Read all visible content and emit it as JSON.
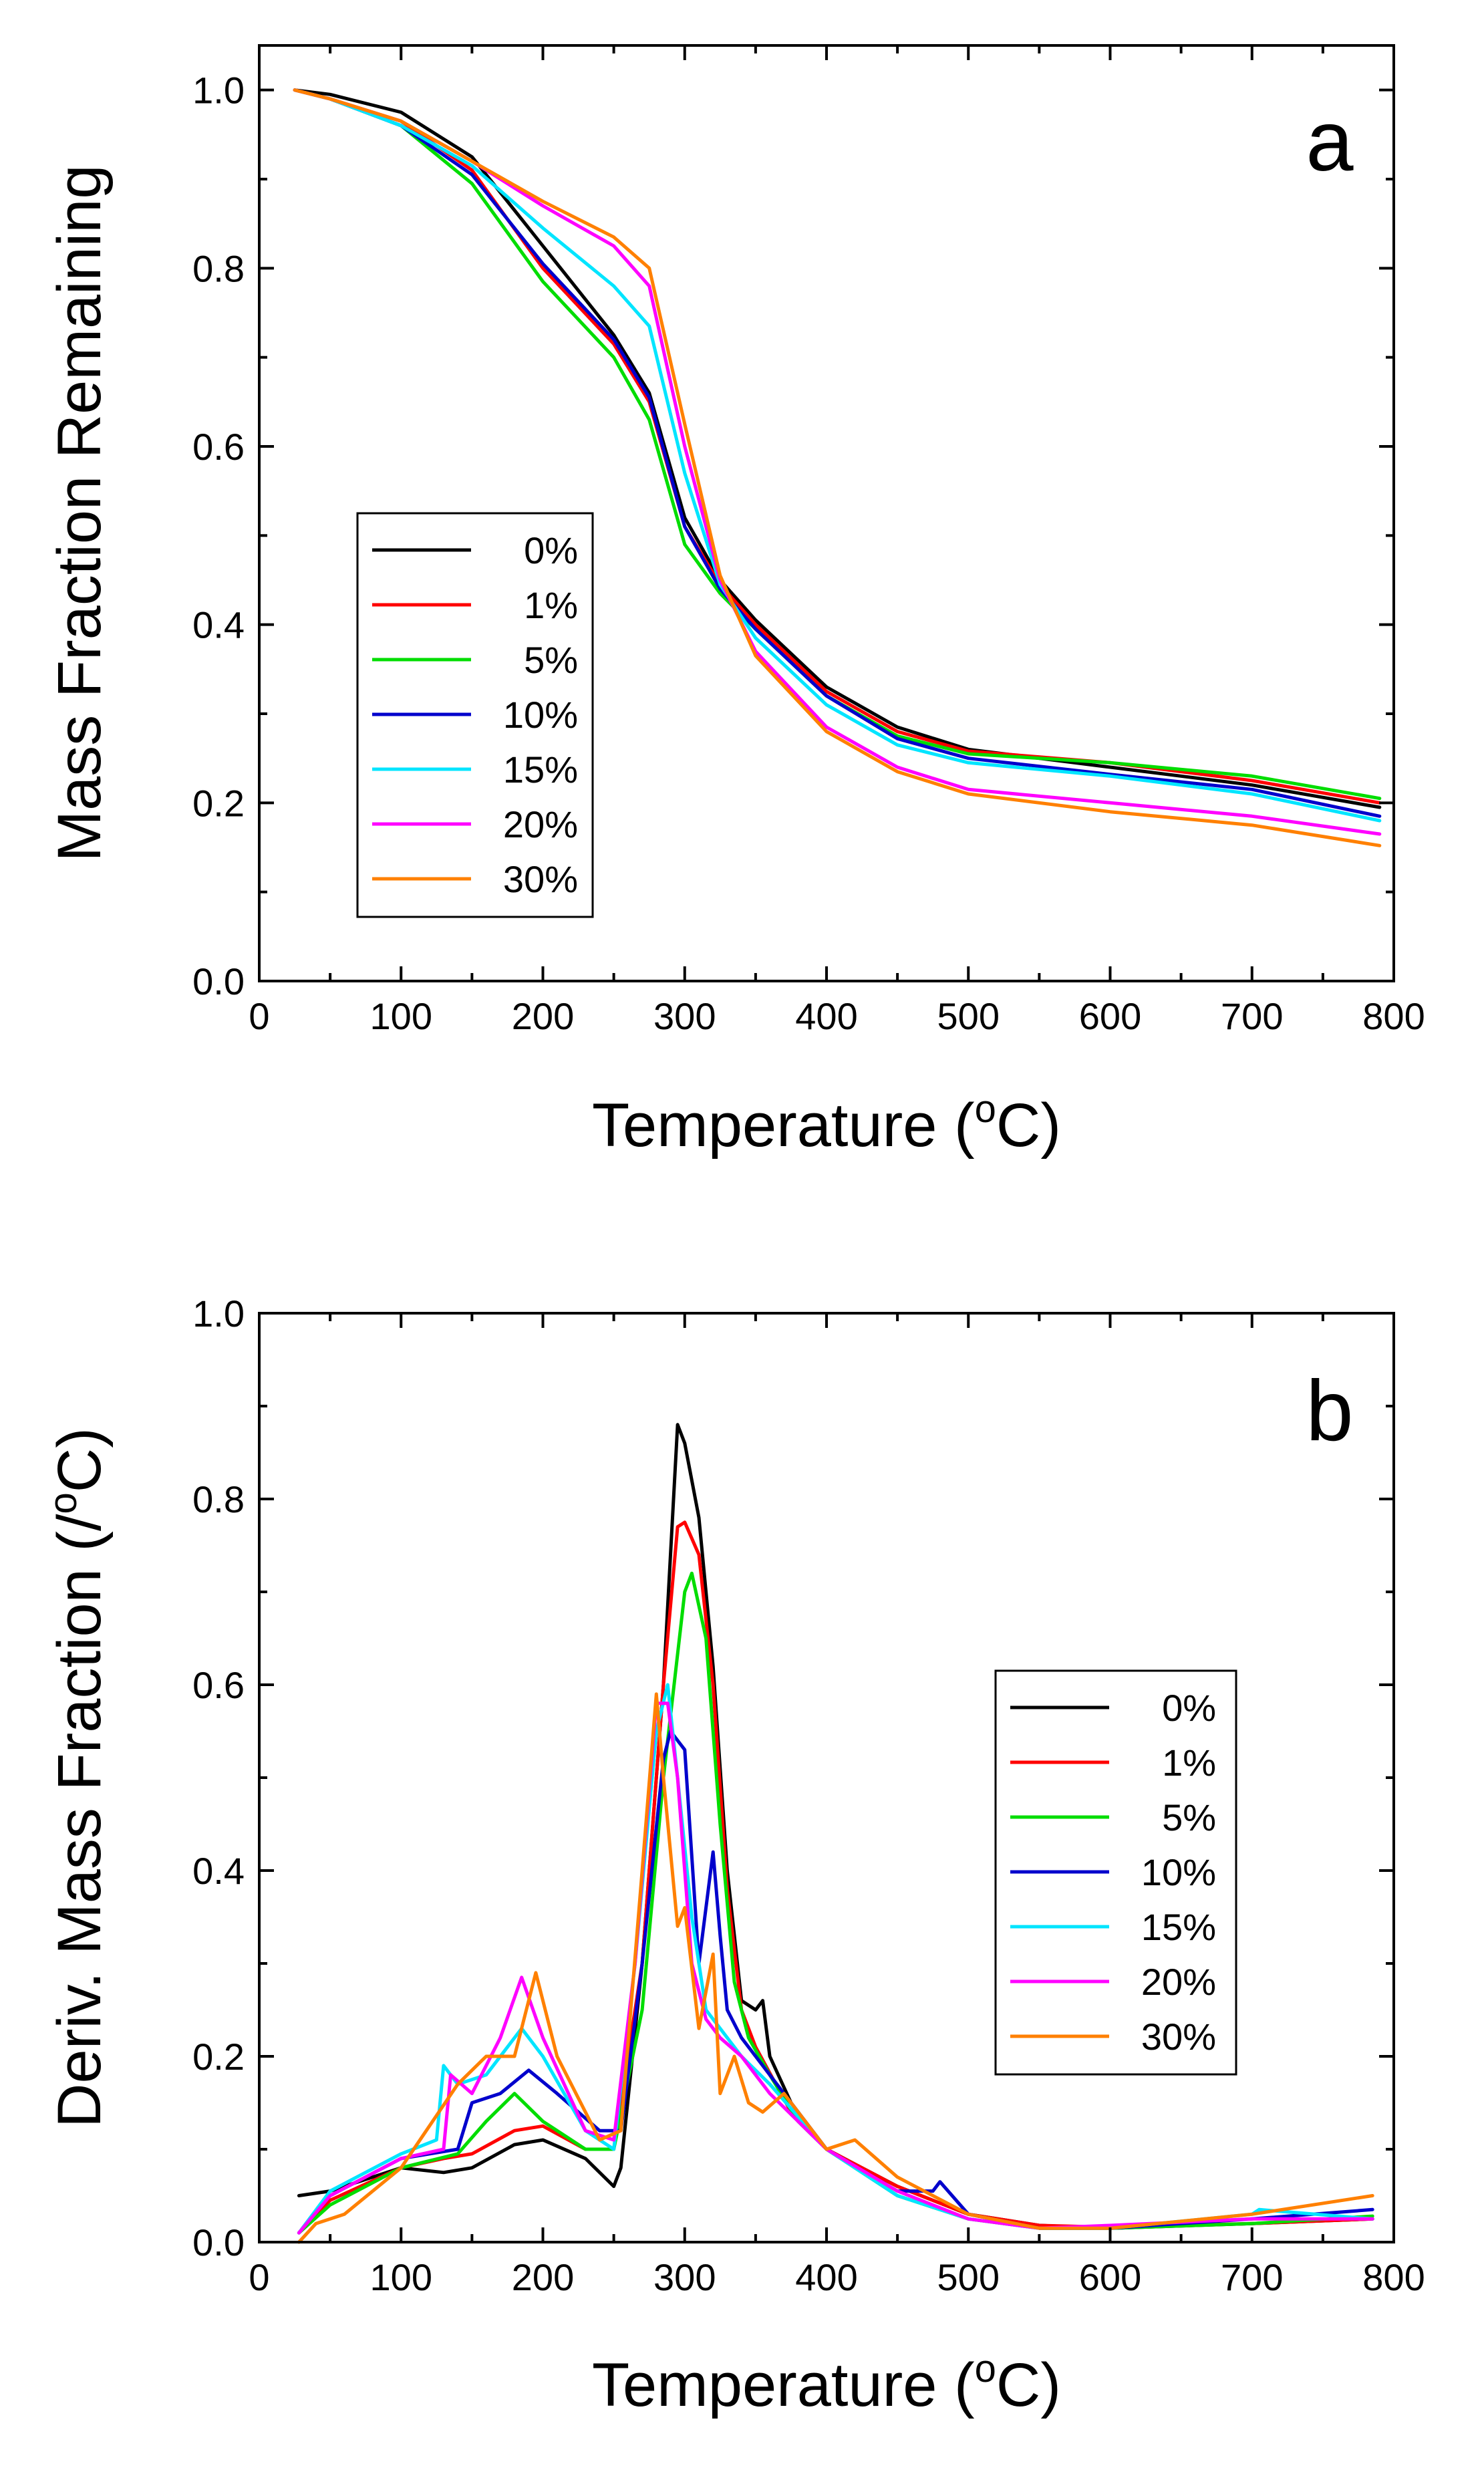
{
  "chart_data": [
    {
      "type": "line",
      "panel_label": "a",
      "title": "",
      "xlabel": "Temperature (",
      "xlabel_sup": "o",
      "xlabel_end": "C)",
      "ylabel": "Mass Fraction Remaining",
      "xlim": [
        0,
        800
      ],
      "ylim": [
        0.0,
        1.05
      ],
      "xticks": [
        0,
        100,
        200,
        300,
        400,
        500,
        600,
        700,
        800
      ],
      "xtick_labels": [
        "0",
        "100",
        "200",
        "300",
        "400",
        "500",
        "600",
        "700",
        "800"
      ],
      "yticks": [
        0.0,
        0.2,
        0.4,
        0.6,
        0.8,
        1.0
      ],
      "ytick_labels": [
        "0.0",
        "0.2",
        "0.4",
        "0.6",
        "0.8",
        "1.0"
      ],
      "legend_position": "center-left",
      "x": [
        25,
        50,
        100,
        150,
        200,
        250,
        275,
        300,
        325,
        350,
        400,
        450,
        500,
        600,
        700,
        790
      ],
      "series": [
        {
          "name": "0%",
          "color": "#000000",
          "values": [
            1.0,
            0.995,
            0.975,
            0.925,
            0.825,
            0.725,
            0.66,
            0.52,
            0.45,
            0.405,
            0.33,
            0.285,
            0.26,
            0.24,
            0.22,
            0.195
          ]
        },
        {
          "name": "1%",
          "color": "#ff0000",
          "values": [
            1.0,
            0.99,
            0.965,
            0.91,
            0.8,
            0.715,
            0.65,
            0.51,
            0.445,
            0.4,
            0.325,
            0.28,
            0.258,
            0.245,
            0.225,
            0.2
          ]
        },
        {
          "name": "5%",
          "color": "#00dd00",
          "values": [
            1.0,
            0.99,
            0.96,
            0.895,
            0.785,
            0.7,
            0.63,
            0.49,
            0.435,
            0.395,
            0.32,
            0.275,
            0.255,
            0.245,
            0.23,
            0.205
          ]
        },
        {
          "name": "10%",
          "color": "#0000cc",
          "values": [
            1.0,
            0.99,
            0.96,
            0.905,
            0.805,
            0.72,
            0.655,
            0.51,
            0.44,
            0.395,
            0.32,
            0.272,
            0.25,
            0.232,
            0.215,
            0.185
          ]
        },
        {
          "name": "15%",
          "color": "#00e5ff",
          "values": [
            1.0,
            0.99,
            0.96,
            0.915,
            0.845,
            0.78,
            0.735,
            0.57,
            0.445,
            0.385,
            0.31,
            0.265,
            0.245,
            0.23,
            0.21,
            0.18
          ]
        },
        {
          "name": "20%",
          "color": "#ff00ff",
          "values": [
            1.0,
            0.99,
            0.965,
            0.92,
            0.87,
            0.825,
            0.78,
            0.6,
            0.45,
            0.37,
            0.285,
            0.24,
            0.215,
            0.2,
            0.185,
            0.165
          ]
        },
        {
          "name": "30%",
          "color": "#ff8000",
          "values": [
            1.0,
            0.99,
            0.965,
            0.92,
            0.875,
            0.835,
            0.8,
            0.625,
            0.455,
            0.365,
            0.28,
            0.235,
            0.21,
            0.19,
            0.175,
            0.152
          ]
        }
      ]
    },
    {
      "type": "line",
      "panel_label": "b",
      "title": "",
      "xlabel": "Temperature (",
      "xlabel_sup": "o",
      "xlabel_end": "C)",
      "ylabel": "Deriv. Mass Fraction (/",
      "ylabel_sup": "o",
      "ylabel_end": "C)",
      "xlim": [
        0,
        800
      ],
      "ylim": [
        0.0,
        1.0
      ],
      "xticks": [
        0,
        100,
        200,
        300,
        400,
        500,
        600,
        700,
        800
      ],
      "xtick_labels": [
        "0",
        "100",
        "200",
        "300",
        "400",
        "500",
        "600",
        "700",
        "800"
      ],
      "yticks": [
        0.0,
        0.2,
        0.4,
        0.6,
        0.8,
        1.0
      ],
      "ytick_labels": [
        "0.0",
        "0.2",
        "0.4",
        "0.6",
        "0.8",
        "1.0"
      ],
      "legend_position": "center-right",
      "series": [
        {
          "name": "0%",
          "color": "#000000",
          "x": [
            28,
            50,
            100,
            130,
            150,
            180,
            200,
            230,
            250,
            255,
            270,
            285,
            295,
            300,
            310,
            320,
            330,
            340,
            350,
            355,
            360,
            375,
            400,
            450,
            500,
            550,
            600,
            700,
            785
          ],
          "values": [
            0.05,
            0.055,
            0.08,
            0.075,
            0.08,
            0.105,
            0.11,
            0.09,
            0.06,
            0.08,
            0.3,
            0.6,
            0.88,
            0.86,
            0.78,
            0.62,
            0.4,
            0.26,
            0.25,
            0.26,
            0.2,
            0.15,
            0.1,
            0.06,
            0.03,
            0.018,
            0.015,
            0.02,
            0.025
          ]
        },
        {
          "name": "1%",
          "color": "#ff0000",
          "x": [
            28,
            50,
            100,
            130,
            150,
            180,
            200,
            230,
            250,
            270,
            285,
            295,
            300,
            310,
            320,
            330,
            340,
            350,
            375,
            400,
            450,
            500,
            550,
            600,
            700,
            785
          ],
          "values": [
            0.01,
            0.045,
            0.08,
            0.09,
            0.095,
            0.12,
            0.125,
            0.1,
            0.1,
            0.3,
            0.6,
            0.77,
            0.775,
            0.74,
            0.6,
            0.38,
            0.25,
            0.21,
            0.14,
            0.1,
            0.06,
            0.03,
            0.018,
            0.016,
            0.02,
            0.025
          ]
        },
        {
          "name": "5%",
          "color": "#00dd00",
          "x": [
            28,
            50,
            100,
            140,
            160,
            180,
            200,
            230,
            250,
            270,
            285,
            300,
            305,
            315,
            325,
            335,
            345,
            360,
            380,
            400,
            450,
            500,
            550,
            600,
            700,
            785
          ],
          "values": [
            0.01,
            0.04,
            0.08,
            0.095,
            0.13,
            0.16,
            0.13,
            0.1,
            0.1,
            0.25,
            0.5,
            0.7,
            0.72,
            0.65,
            0.45,
            0.28,
            0.22,
            0.18,
            0.13,
            0.1,
            0.05,
            0.025,
            0.015,
            0.015,
            0.02,
            0.028
          ]
        },
        {
          "name": "10%",
          "color": "#0000cc",
          "x": [
            28,
            50,
            100,
            140,
            150,
            170,
            190,
            210,
            240,
            255,
            270,
            285,
            290,
            300,
            310,
            320,
            325,
            330,
            340,
            350,
            380,
            400,
            450,
            475,
            480,
            500,
            550,
            600,
            700,
            785
          ],
          "values": [
            0.01,
            0.05,
            0.09,
            0.1,
            0.15,
            0.16,
            0.185,
            0.16,
            0.12,
            0.12,
            0.3,
            0.52,
            0.55,
            0.53,
            0.3,
            0.42,
            0.33,
            0.25,
            0.22,
            0.2,
            0.14,
            0.1,
            0.055,
            0.055,
            0.065,
            0.03,
            0.015,
            0.015,
            0.025,
            0.035
          ]
        },
        {
          "name": "15%",
          "color": "#00e5ff",
          "x": [
            28,
            50,
            100,
            125,
            130,
            140,
            160,
            185,
            200,
            230,
            250,
            265,
            280,
            288,
            295,
            305,
            315,
            325,
            340,
            360,
            400,
            450,
            500,
            550,
            600,
            700,
            705,
            785
          ],
          "values": [
            0.01,
            0.055,
            0.095,
            0.11,
            0.19,
            0.17,
            0.18,
            0.23,
            0.2,
            0.12,
            0.1,
            0.3,
            0.55,
            0.6,
            0.5,
            0.35,
            0.25,
            0.23,
            0.2,
            0.17,
            0.1,
            0.05,
            0.025,
            0.015,
            0.015,
            0.03,
            0.035,
            0.025
          ]
        },
        {
          "name": "20%",
          "color": "#ff00ff",
          "x": [
            28,
            50,
            100,
            130,
            135,
            150,
            170,
            185,
            200,
            230,
            250,
            265,
            280,
            288,
            295,
            305,
            315,
            325,
            340,
            360,
            400,
            450,
            500,
            550,
            600,
            700,
            785
          ],
          "values": [
            0.01,
            0.05,
            0.09,
            0.1,
            0.18,
            0.16,
            0.22,
            0.285,
            0.22,
            0.12,
            0.11,
            0.3,
            0.58,
            0.58,
            0.5,
            0.3,
            0.24,
            0.22,
            0.2,
            0.16,
            0.1,
            0.055,
            0.025,
            0.015,
            0.018,
            0.025,
            0.025
          ]
        },
        {
          "name": "30%",
          "color": "#ff8000",
          "x": [
            28,
            40,
            60,
            100,
            140,
            160,
            180,
            195,
            210,
            240,
            255,
            270,
            280,
            285,
            295,
            300,
            310,
            320,
            325,
            335,
            345,
            355,
            370,
            400,
            420,
            450,
            500,
            550,
            600,
            700,
            785
          ],
          "values": [
            0.0,
            0.02,
            0.03,
            0.08,
            0.17,
            0.2,
            0.2,
            0.29,
            0.2,
            0.11,
            0.12,
            0.4,
            0.59,
            0.5,
            0.34,
            0.36,
            0.23,
            0.31,
            0.16,
            0.2,
            0.15,
            0.14,
            0.16,
            0.1,
            0.11,
            0.07,
            0.03,
            0.015,
            0.015,
            0.03,
            0.05
          ]
        }
      ]
    }
  ]
}
